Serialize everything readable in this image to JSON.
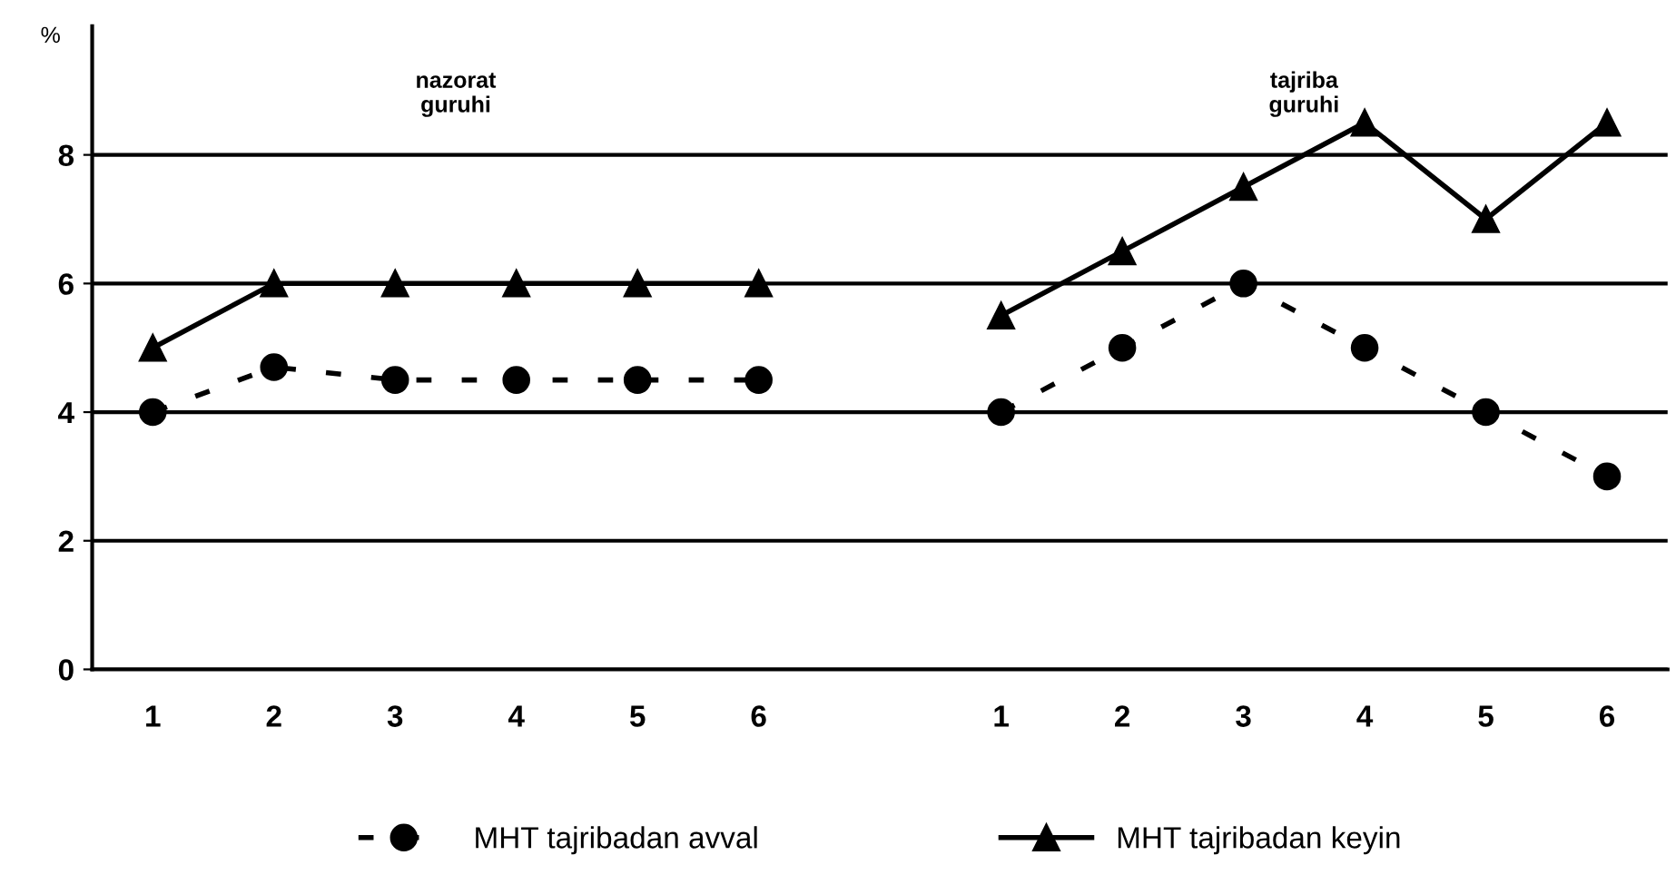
{
  "chart_data": {
    "type": "line",
    "ylabel": "%",
    "categories": [
      "1",
      "2",
      "3",
      "4",
      "5",
      "6",
      null,
      "1",
      "2",
      "3",
      "4",
      "5",
      "6"
    ],
    "series": [
      {
        "name": "MHT tajribadan avval",
        "color": "#000000",
        "marker": "circle",
        "line_style": "dashed",
        "values": [
          4,
          4.7,
          4.5,
          4.5,
          4.5,
          4.5,
          null,
          4,
          5,
          6,
          5,
          4,
          3
        ]
      },
      {
        "name": "MHT tajribadan keyin",
        "color": "#000000",
        "marker": "triangle",
        "line_style": "solid",
        "values": [
          5,
          6,
          6,
          6,
          6,
          6,
          null,
          5.5,
          6.5,
          7.5,
          8.5,
          7,
          8.5
        ]
      }
    ],
    "annotations": [
      "nazorat\nguruhi",
      "tajriba\nguruhi"
    ],
    "ylim": [
      0,
      10
    ],
    "yticks": [
      0,
      2,
      4,
      6,
      8
    ],
    "grid": "y",
    "legend": "bottom"
  }
}
